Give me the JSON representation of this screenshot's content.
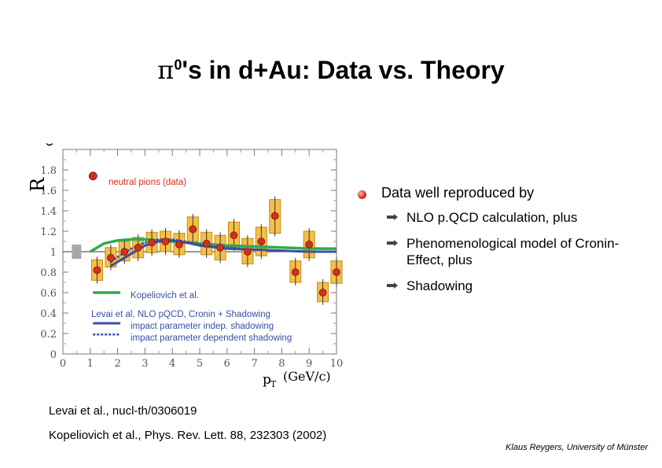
{
  "slide": {
    "title_prefix": "π",
    "title_sup": "0",
    "title_rest": "'s in d+Au: Data vs. Theory",
    "bullet_main": "Data well reproduced by",
    "sub_bullets": [
      "NLO p.QCD calculation, plus",
      "Phenomenological model of Cronin-Effect, plus",
      "Shadowing"
    ],
    "ref1": "Levai et al., nucl-th/0306019",
    "ref2": "Kopeliovich et al., Phys. Rev. Lett. 88, 232303 (2002)",
    "credit": "Klaus Reygers, University of Münster"
  },
  "colors": {
    "data_box": "#f5c04a",
    "data_marker": "#d32f1f",
    "green": "#2faa4f",
    "blue": "#3b4fa0",
    "shade": "#b8c4e6",
    "gray_box": "#a8a8a8"
  },
  "chart_data": {
    "type": "scatter",
    "ylabel": "R",
    "ylabel_sub": "dA",
    "xlabel": "p",
    "xlabel_sub": "T",
    "xlabel_unit": "(GeV/c)",
    "xlim": [
      0,
      10
    ],
    "ylim": [
      0,
      2
    ],
    "x_ticks": [
      "0",
      "1",
      "2",
      "3",
      "4",
      "5",
      "6",
      "7",
      "8",
      "9",
      "10"
    ],
    "y_ticks": [
      "0",
      "0.2",
      "0.4",
      "0.6",
      "0.8",
      "1",
      "1.2",
      "1.4",
      "1.6",
      "1.8"
    ],
    "legend_data": "neutral pions (data)",
    "legend_kop": "Kopeliovich et al.",
    "legend_levai_title": "Levai et al, NLO pQCD, Cronin + Shadowing",
    "legend_indep": "impact parameter indep. shadowing",
    "legend_dep": "impact parameter dependent shadowing",
    "normalization_box": {
      "x": 0.5,
      "y_low": 0.93,
      "y_high": 1.07
    },
    "series": [
      {
        "name": "neutral pions (data)",
        "points": [
          {
            "x": 1.25,
            "y": 0.82,
            "lo": 0.72,
            "hi": 0.92
          },
          {
            "x": 1.75,
            "y": 0.94,
            "lo": 0.85,
            "hi": 1.04
          },
          {
            "x": 2.25,
            "y": 1.0,
            "lo": 0.91,
            "hi": 1.1
          },
          {
            "x": 2.75,
            "y": 1.04,
            "lo": 0.94,
            "hi": 1.14
          },
          {
            "x": 3.25,
            "y": 1.09,
            "lo": 0.99,
            "hi": 1.19
          },
          {
            "x": 3.75,
            "y": 1.1,
            "lo": 1.0,
            "hi": 1.2
          },
          {
            "x": 4.25,
            "y": 1.07,
            "lo": 0.97,
            "hi": 1.18
          },
          {
            "x": 4.75,
            "y": 1.22,
            "lo": 1.1,
            "hi": 1.34
          },
          {
            "x": 5.25,
            "y": 1.08,
            "lo": 0.97,
            "hi": 1.19
          },
          {
            "x": 5.75,
            "y": 1.04,
            "lo": 0.92,
            "hi": 1.16
          },
          {
            "x": 6.25,
            "y": 1.16,
            "lo": 1.04,
            "hi": 1.29
          },
          {
            "x": 6.75,
            "y": 1.0,
            "lo": 0.88,
            "hi": 1.13
          },
          {
            "x": 7.25,
            "y": 1.1,
            "lo": 0.96,
            "hi": 1.24
          },
          {
            "x": 7.75,
            "y": 1.35,
            "lo": 1.18,
            "hi": 1.51
          },
          {
            "x": 8.5,
            "y": 0.8,
            "lo": 0.7,
            "hi": 0.91
          },
          {
            "x": 9.0,
            "y": 1.07,
            "lo": 0.94,
            "hi": 1.2
          },
          {
            "x": 9.5,
            "y": 0.6,
            "lo": 0.51,
            "hi": 0.7
          },
          {
            "x": 10.0,
            "y": 0.8,
            "lo": 0.69,
            "hi": 0.91
          }
        ]
      },
      {
        "name": "Kopeliovich et al.",
        "x": [
          1.0,
          1.5,
          2.0,
          2.5,
          3.0,
          3.5,
          4.0,
          5.0,
          6.0,
          7.0,
          8.0,
          9.0,
          10.0
        ],
        "y": [
          1.0,
          1.08,
          1.11,
          1.12,
          1.12,
          1.11,
          1.1,
          1.08,
          1.06,
          1.05,
          1.04,
          1.03,
          1.03
        ]
      },
      {
        "name": "impact parameter indep. shadowing",
        "x": [
          1.75,
          2.0,
          2.5,
          3.0,
          3.5,
          4.0,
          4.5,
          5.0,
          6.0,
          7.0,
          8.0,
          9.0,
          10.0
        ],
        "y": [
          0.86,
          0.9,
          0.98,
          1.06,
          1.1,
          1.11,
          1.09,
          1.06,
          1.03,
          1.02,
          1.01,
          1.0,
          1.0
        ]
      },
      {
        "name": "impact parameter dependent shadowing",
        "x": [
          1.75,
          2.0,
          2.5,
          3.0,
          3.5,
          4.0,
          4.5,
          5.0,
          6.0,
          7.0,
          8.0,
          9.0,
          10.0
        ],
        "y": [
          0.9,
          0.95,
          1.03,
          1.09,
          1.12,
          1.12,
          1.1,
          1.07,
          1.04,
          1.02,
          1.01,
          1.0,
          1.0
        ]
      }
    ]
  }
}
